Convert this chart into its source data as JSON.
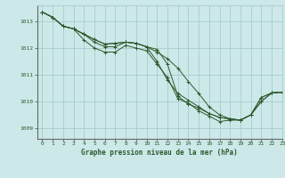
{
  "title": "Graphe pression niveau de la mer (hPa)",
  "bg_color": "#cce8e8",
  "grid_color": "#aacccc",
  "line_color": "#2d5a2d",
  "xlim": [
    -0.5,
    23
  ],
  "ylim": [
    1008.6,
    1013.6
  ],
  "yticks": [
    1009,
    1010,
    1011,
    1012,
    1013
  ],
  "xticks": [
    0,
    1,
    2,
    3,
    4,
    5,
    6,
    7,
    8,
    9,
    10,
    11,
    12,
    13,
    14,
    15,
    16,
    17,
    18,
    19,
    20,
    21,
    22,
    23
  ],
  "series": [
    [
      1013.35,
      1013.15,
      1012.82,
      1012.72,
      1012.52,
      1012.32,
      1012.15,
      1012.18,
      1012.22,
      1012.18,
      1012.05,
      1011.85,
      1011.6,
      1011.25,
      1010.75,
      1010.3,
      1009.8,
      1009.5,
      1009.35,
      1009.3,
      1009.5,
      1010.15,
      1010.32,
      1010.35
    ],
    [
      1013.35,
      1013.15,
      1012.82,
      1012.72,
      1012.52,
      1012.32,
      1012.15,
      1012.18,
      1012.22,
      1012.18,
      1012.05,
      1011.5,
      1010.8,
      1010.3,
      1010.05,
      1009.8,
      1009.55,
      1009.4,
      1009.35,
      1009.3,
      1009.5,
      1010.15,
      1010.32,
      1010.35
    ],
    [
      1013.35,
      1013.15,
      1012.82,
      1012.72,
      1012.52,
      1012.22,
      1012.05,
      1012.05,
      1012.22,
      1012.18,
      1012.05,
      1011.95,
      1011.4,
      1010.2,
      1009.9,
      1009.75,
      1009.55,
      1009.4,
      1009.35,
      1009.3,
      1009.5,
      1010.0,
      1010.32,
      1010.35
    ],
    [
      1013.35,
      1013.15,
      1012.82,
      1012.72,
      1012.3,
      1012.0,
      1011.85,
      1011.85,
      1012.1,
      1012.0,
      1011.9,
      1011.4,
      1010.9,
      1010.1,
      1009.95,
      1009.65,
      1009.45,
      1009.25,
      1009.3,
      1009.3,
      1009.5,
      1010.0,
      1010.32,
      1010.35
    ]
  ]
}
